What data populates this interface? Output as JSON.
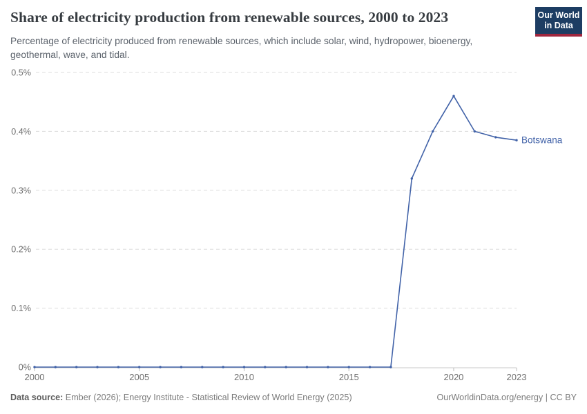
{
  "header": {
    "title": "Share of electricity production from renewable sources, 2000 to 2023",
    "subtitle": "Percentage of electricity produced from renewable sources, which include solar, wind, hydropower, bioenergy, geothermal, wave, and tidal.",
    "logo": {
      "line1": "Our World",
      "line2": "in Data",
      "bg_color": "#1d3d63",
      "accent_color": "#a0263e"
    }
  },
  "chart_data": {
    "type": "line",
    "title": "Share of electricity production from renewable sources, 2000 to 2023",
    "xlabel": "",
    "ylabel": "",
    "xlim": [
      2000,
      2023
    ],
    "ylim": [
      0,
      0.5
    ],
    "grid": "horizontal-dashed",
    "legend_position": "end-of-line-label",
    "x_ticks": [
      2000,
      2005,
      2010,
      2015,
      2020,
      2023
    ],
    "y_ticks": [
      {
        "value": 0,
        "label": "0%"
      },
      {
        "value": 0.1,
        "label": "0.1%"
      },
      {
        "value": 0.2,
        "label": "0.2%"
      },
      {
        "value": 0.3,
        "label": "0.3%"
      },
      {
        "value": 0.4,
        "label": "0.4%"
      },
      {
        "value": 0.5,
        "label": "0.5%"
      }
    ],
    "series": [
      {
        "name": "Botswana",
        "color": "#4162a8",
        "x": [
          2000,
          2001,
          2002,
          2003,
          2004,
          2005,
          2006,
          2007,
          2008,
          2009,
          2010,
          2011,
          2012,
          2013,
          2014,
          2015,
          2016,
          2017,
          2018,
          2019,
          2020,
          2021,
          2022,
          2023
        ],
        "values": [
          0,
          0,
          0,
          0,
          0,
          0,
          0,
          0,
          0,
          0,
          0,
          0,
          0,
          0,
          0,
          0,
          0,
          0,
          0.32,
          0.4,
          0.46,
          0.4,
          0.39,
          0.385
        ]
      }
    ],
    "colors": {
      "gridline": "#dcdcdc",
      "axis_line": "#c8c8c8",
      "tick_mark": "#bdbdbd",
      "tick_label": "#6e6e6e"
    }
  },
  "footer": {
    "data_source_label": "Data source:",
    "data_source_text": " Ember (2026); Energy Institute - Statistical Review of World Energy (2025)",
    "link_text": "OurWorldinData.org/energy | CC BY"
  }
}
